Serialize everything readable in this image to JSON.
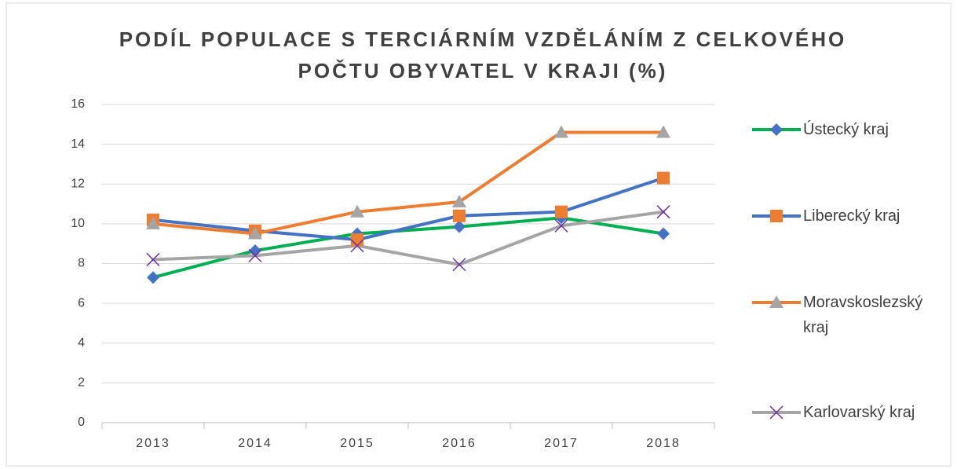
{
  "chart_data": {
    "type": "line",
    "title": "PODÍL POPULACE S TERCIÁRNÍM VZDĚLÁNÍM Z CELKOVÉHO POČTU OBYVATEL V KRAJI (%)",
    "categories": [
      "2013",
      "2014",
      "2015",
      "2016",
      "2017",
      "2018"
    ],
    "series": [
      {
        "name": "Ústecký kraj",
        "color": "#00b050",
        "marker": "diamond",
        "marker_color": "#4472c4",
        "values": [
          7.3,
          8.65,
          9.5,
          9.85,
          10.3,
          9.5
        ]
      },
      {
        "name": "Liberecký kraj",
        "color": "#4472c4",
        "marker": "square",
        "marker_color": "#ed7d31",
        "values": [
          10.2,
          9.65,
          9.2,
          10.4,
          10.6,
          12.3
        ]
      },
      {
        "name": "Moravskoslezský kraj",
        "color": "#ed7d31",
        "marker": "triangle",
        "marker_color": "#a5a5a5",
        "values": [
          10.0,
          9.5,
          10.6,
          11.1,
          14.6,
          14.6
        ]
      },
      {
        "name": "Karlovarský kraj",
        "color": "#a5a5a5",
        "marker": "x",
        "marker_color": "#7030a0",
        "values": [
          8.2,
          8.4,
          8.9,
          7.95,
          9.9,
          10.6
        ]
      }
    ],
    "ylim": [
      0,
      16
    ],
    "yticks": [
      0,
      2,
      4,
      6,
      8,
      10,
      12,
      14,
      16
    ],
    "grid": true,
    "legend": "right"
  }
}
